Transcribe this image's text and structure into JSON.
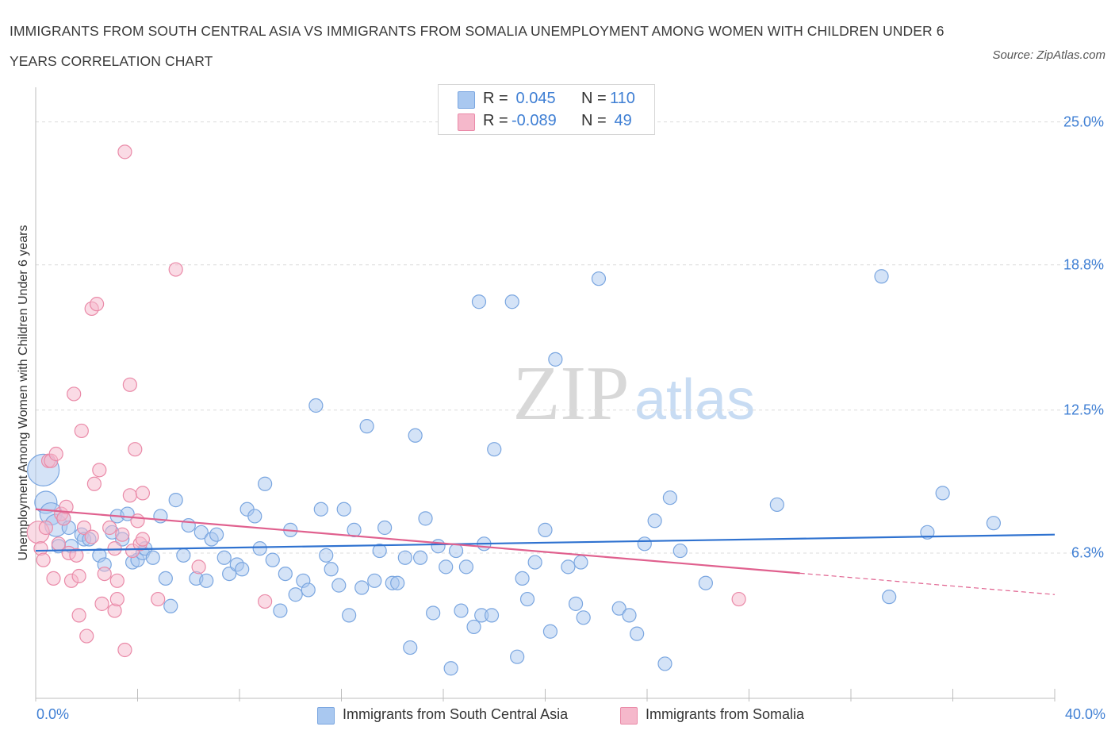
{
  "header": {
    "title": "IMMIGRANTS FROM SOUTH CENTRAL ASIA VS IMMIGRANTS FROM SOMALIA UNEMPLOYMENT AMONG WOMEN WITH CHILDREN UNDER 6 YEARS CORRELATION CHART",
    "source": "Source: ZipAtlas.com"
  },
  "watermark": "ZIPatlas",
  "colors": {
    "blue_fill": "#a9c8f0",
    "blue_stroke": "#7aa6e0",
    "blue_line": "#2f72d0",
    "pink_fill": "#f5b8cb",
    "pink_stroke": "#ea8aa8",
    "pink_line": "#e0608e",
    "tick_text": "#3f7fd4"
  },
  "legend": {
    "rows": [
      {
        "r_label": "R =",
        "r_value": " 0.045",
        "n_label": "N =",
        "n_value": "110",
        "color": "#a9c8f0"
      },
      {
        "r_label": "R =",
        "r_value": "-0.089",
        "n_label": "N =",
        "n_value": " 49",
        "color": "#f5b8cb"
      }
    ]
  },
  "chart_data": {
    "type": "scatter",
    "title": "IMMIGRANTS FROM SOUTH CENTRAL ASIA VS IMMIGRANTS FROM SOMALIA UNEMPLOYMENT AMONG WOMEN WITH CHILDREN UNDER 6 YEARS CORRELATION CHART",
    "xlabel": "",
    "ylabel": "Unemployment Among Women with Children Under 6 years",
    "xlim": [
      0,
      40
    ],
    "ylim": [
      0,
      26.5
    ],
    "x_tick_labels": [
      "0.0%",
      "40.0%"
    ],
    "y_ticks": [
      6.3,
      12.5,
      18.8,
      25.0
    ],
    "y_tick_labels": [
      "6.3%",
      "12.5%",
      "18.8%",
      "25.0%"
    ],
    "grid": true,
    "legend_position": "top-center",
    "series": [
      {
        "name": "Immigrants from South Central Asia",
        "R": 0.045,
        "N": 110,
        "trend": {
          "x0": 0,
          "y0": 6.4,
          "x1": 40,
          "y1": 7.1
        },
        "points": [
          [
            0.3,
            9.9,
            3
          ],
          [
            0.4,
            8.5,
            2
          ],
          [
            0.6,
            8.0,
            2
          ],
          [
            0.8,
            7.5,
            2
          ],
          [
            0.9,
            6.6,
            1
          ],
          [
            1.1,
            7.8,
            1
          ],
          [
            1.3,
            7.4,
            1
          ],
          [
            1.4,
            6.6,
            1
          ],
          [
            1.8,
            7.1,
            1
          ],
          [
            1.9,
            6.9,
            1
          ],
          [
            2.1,
            6.9,
            1
          ],
          [
            2.5,
            6.2,
            1
          ],
          [
            2.7,
            5.8,
            1
          ],
          [
            3.0,
            7.2,
            1
          ],
          [
            3.2,
            7.9,
            1
          ],
          [
            3.4,
            6.9,
            1
          ],
          [
            3.6,
            8.0,
            1
          ],
          [
            3.8,
            5.9,
            1
          ],
          [
            4.0,
            6.0,
            1
          ],
          [
            4.2,
            6.3,
            1
          ],
          [
            4.3,
            6.5,
            1
          ],
          [
            4.6,
            6.1,
            1
          ],
          [
            4.9,
            7.9,
            1
          ],
          [
            5.1,
            5.2,
            1
          ],
          [
            5.3,
            4.0,
            1
          ],
          [
            5.5,
            8.6,
            1
          ],
          [
            5.8,
            6.2,
            1
          ],
          [
            6.0,
            7.5,
            1
          ],
          [
            6.3,
            5.2,
            1
          ],
          [
            6.5,
            7.2,
            1
          ],
          [
            6.7,
            5.1,
            1
          ],
          [
            6.9,
            6.9,
            1
          ],
          [
            7.1,
            7.1,
            1
          ],
          [
            7.4,
            6.1,
            1
          ],
          [
            7.6,
            5.4,
            1
          ],
          [
            7.9,
            5.8,
            1
          ],
          [
            8.1,
            5.6,
            1
          ],
          [
            8.3,
            8.2,
            1
          ],
          [
            8.6,
            7.9,
            1
          ],
          [
            8.8,
            6.5,
            1
          ],
          [
            9.0,
            9.3,
            1
          ],
          [
            9.3,
            6.0,
            1
          ],
          [
            9.6,
            3.8,
            1
          ],
          [
            9.8,
            5.4,
            1
          ],
          [
            10.0,
            7.3,
            1
          ],
          [
            10.2,
            4.5,
            1
          ],
          [
            10.5,
            5.1,
            1
          ],
          [
            10.7,
            4.7,
            1
          ],
          [
            11.0,
            12.7,
            1
          ],
          [
            11.2,
            8.2,
            1
          ],
          [
            11.4,
            6.2,
            1
          ],
          [
            11.6,
            5.6,
            1
          ],
          [
            11.9,
            4.9,
            1
          ],
          [
            12.1,
            8.2,
            1
          ],
          [
            12.3,
            3.6,
            1
          ],
          [
            12.5,
            7.3,
            1
          ],
          [
            12.8,
            4.8,
            1
          ],
          [
            13.0,
            11.8,
            1
          ],
          [
            13.3,
            5.1,
            1
          ],
          [
            13.5,
            6.4,
            1
          ],
          [
            13.7,
            7.4,
            1
          ],
          [
            14.0,
            5.0,
            1
          ],
          [
            14.2,
            5.0,
            1
          ],
          [
            14.5,
            6.1,
            1
          ],
          [
            14.7,
            2.2,
            1
          ],
          [
            14.9,
            11.4,
            1
          ],
          [
            15.1,
            6.1,
            1
          ],
          [
            15.3,
            7.8,
            1
          ],
          [
            15.6,
            3.7,
            1
          ],
          [
            15.8,
            6.6,
            1
          ],
          [
            16.1,
            5.7,
            1
          ],
          [
            16.3,
            1.3,
            1
          ],
          [
            16.5,
            6.4,
            1
          ],
          [
            16.7,
            3.8,
            1
          ],
          [
            16.9,
            5.7,
            1
          ],
          [
            17.2,
            3.1,
            1
          ],
          [
            17.4,
            17.2,
            1
          ],
          [
            17.5,
            3.6,
            1
          ],
          [
            17.6,
            6.7,
            1
          ],
          [
            17.9,
            3.6,
            1
          ],
          [
            18.0,
            10.8,
            1
          ],
          [
            18.7,
            17.2,
            1
          ],
          [
            18.9,
            1.8,
            1
          ],
          [
            19.1,
            5.2,
            1
          ],
          [
            19.3,
            4.3,
            1
          ],
          [
            19.6,
            5.9,
            1
          ],
          [
            20.0,
            7.3,
            1
          ],
          [
            20.2,
            2.9,
            1
          ],
          [
            20.4,
            14.7,
            1
          ],
          [
            20.9,
            5.7,
            1
          ],
          [
            21.2,
            4.1,
            1
          ],
          [
            21.4,
            5.9,
            1
          ],
          [
            21.5,
            3.5,
            1
          ],
          [
            22.1,
            18.2,
            1
          ],
          [
            22.9,
            3.9,
            1
          ],
          [
            23.3,
            3.6,
            1
          ],
          [
            23.6,
            2.8,
            1
          ],
          [
            23.9,
            6.7,
            1
          ],
          [
            24.3,
            7.7,
            1
          ],
          [
            24.7,
            1.5,
            1
          ],
          [
            24.9,
            8.7,
            1
          ],
          [
            25.3,
            6.4,
            1
          ],
          [
            26.3,
            5.0,
            1
          ],
          [
            29.1,
            8.4,
            1
          ],
          [
            33.2,
            18.3,
            1
          ],
          [
            33.5,
            4.4,
            1
          ],
          [
            35.0,
            7.2,
            1
          ],
          [
            35.6,
            8.9,
            1
          ],
          [
            37.6,
            7.6,
            1
          ]
        ]
      },
      {
        "name": "Immigrants from Somalia",
        "R": -0.089,
        "N": 49,
        "trend": {
          "x0": 0,
          "y0": 8.2,
          "x1": 40,
          "y1": 4.5,
          "solid_until_x": 30
        },
        "points": [
          [
            0.1,
            7.2,
            2
          ],
          [
            0.2,
            6.5,
            1
          ],
          [
            0.3,
            6.0,
            1
          ],
          [
            0.4,
            7.4,
            1
          ],
          [
            0.5,
            10.3,
            1
          ],
          [
            0.6,
            10.3,
            1
          ],
          [
            0.7,
            5.2,
            1
          ],
          [
            0.8,
            10.6,
            1
          ],
          [
            0.9,
            6.7,
            1
          ],
          [
            1.0,
            8.0,
            1
          ],
          [
            1.1,
            7.8,
            1
          ],
          [
            1.2,
            8.3,
            1
          ],
          [
            1.3,
            6.3,
            1
          ],
          [
            1.4,
            5.1,
            1
          ],
          [
            1.5,
            13.2,
            1
          ],
          [
            1.6,
            6.2,
            1
          ],
          [
            1.7,
            3.6,
            1
          ],
          [
            1.7,
            5.3,
            1
          ],
          [
            1.8,
            11.6,
            1
          ],
          [
            1.9,
            7.4,
            1
          ],
          [
            2.0,
            2.7,
            1
          ],
          [
            2.2,
            7.0,
            1
          ],
          [
            2.2,
            16.9,
            1
          ],
          [
            2.3,
            9.3,
            1
          ],
          [
            2.4,
            17.1,
            1
          ],
          [
            2.5,
            9.9,
            1
          ],
          [
            2.6,
            4.1,
            1
          ],
          [
            2.7,
            5.4,
            1
          ],
          [
            2.9,
            7.4,
            1
          ],
          [
            3.1,
            3.8,
            1
          ],
          [
            3.1,
            6.5,
            1
          ],
          [
            3.2,
            4.3,
            1
          ],
          [
            3.2,
            5.1,
            1
          ],
          [
            3.4,
            7.1,
            1
          ],
          [
            3.5,
            2.1,
            1
          ],
          [
            3.5,
            23.7,
            1
          ],
          [
            3.7,
            8.8,
            1
          ],
          [
            3.7,
            13.6,
            1
          ],
          [
            3.8,
            6.4,
            1
          ],
          [
            3.9,
            10.8,
            1
          ],
          [
            4.0,
            7.7,
            1
          ],
          [
            4.1,
            6.7,
            1
          ],
          [
            4.2,
            6.9,
            1
          ],
          [
            4.2,
            8.9,
            1
          ],
          [
            4.8,
            4.3,
            1
          ],
          [
            5.5,
            18.6,
            1
          ],
          [
            6.4,
            5.7,
            1
          ],
          [
            9.0,
            4.2,
            1
          ],
          [
            27.6,
            4.3,
            1
          ]
        ]
      }
    ]
  },
  "bottom_legend": [
    {
      "label": "Immigrants from South Central Asia",
      "color": "#a9c8f0"
    },
    {
      "label": "Immigrants from Somalia",
      "color": "#f5b8cb"
    }
  ]
}
